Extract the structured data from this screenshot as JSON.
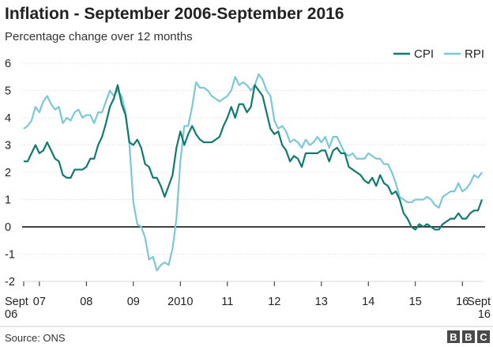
{
  "chart_data": {
    "type": "line",
    "title": "Inflation - September 2006-September 2016",
    "subtitle": "Percentage change over 12 months",
    "ylim": [
      -2,
      6
    ],
    "yticks": [
      -2,
      -1,
      0,
      1,
      2,
      3,
      4,
      5,
      6
    ],
    "grid": true,
    "legend_position": "top-right",
    "x_ticks": [
      {
        "x": 0,
        "label": "Sept",
        "label2": "06"
      },
      {
        "x": 4,
        "label": "07"
      },
      {
        "x": 16,
        "label": "08"
      },
      {
        "x": 28,
        "label": "09"
      },
      {
        "x": 40,
        "label": "2010"
      },
      {
        "x": 52,
        "label": "11"
      },
      {
        "x": 64,
        "label": "12"
      },
      {
        "x": 76,
        "label": "13"
      },
      {
        "x": 88,
        "label": "14"
      },
      {
        "x": 100,
        "label": "15"
      },
      {
        "x": 112,
        "label": "16"
      },
      {
        "x": 120,
        "label": "Sept",
        "label2": "16"
      }
    ],
    "series": [
      {
        "name": "CPI",
        "color": "#117a6e",
        "values": [
          2.4,
          2.4,
          2.7,
          3.0,
          2.7,
          2.8,
          3.1,
          2.8,
          2.5,
          2.4,
          1.9,
          1.8,
          1.8,
          2.1,
          2.1,
          2.1,
          2.2,
          2.5,
          2.5,
          3.0,
          3.3,
          3.8,
          4.4,
          4.7,
          5.2,
          4.5,
          4.1,
          3.1,
          3.0,
          3.2,
          2.9,
          2.3,
          2.2,
          1.8,
          1.8,
          1.5,
          1.1,
          1.5,
          1.9,
          2.9,
          3.5,
          3.0,
          3.4,
          3.7,
          3.4,
          3.2,
          3.1,
          3.1,
          3.1,
          3.2,
          3.3,
          3.7,
          4.0,
          4.4,
          4.0,
          4.5,
          4.5,
          4.2,
          4.4,
          5.2,
          5.0,
          4.8,
          4.2,
          3.6,
          3.4,
          3.5,
          3.0,
          2.8,
          2.4,
          2.6,
          2.5,
          2.2,
          2.7,
          2.7,
          2.7,
          2.7,
          2.8,
          2.8,
          2.4,
          2.8,
          2.9,
          2.7,
          2.7,
          2.2,
          2.1,
          2.0,
          1.9,
          1.7,
          1.6,
          1.8,
          1.5,
          1.9,
          1.6,
          1.5,
          1.2,
          1.3,
          1.0,
          0.5,
          0.3,
          0.0,
          -0.1,
          0.1,
          0.0,
          0.1,
          0.0,
          -0.1,
          -0.1,
          0.1,
          0.2,
          0.3,
          0.3,
          0.5,
          0.3,
          0.3,
          0.5,
          0.6,
          0.6,
          1.0
        ]
      },
      {
        "name": "RPI",
        "color": "#7bc8d6",
        "values": [
          3.6,
          3.7,
          3.9,
          4.4,
          4.2,
          4.6,
          4.8,
          4.5,
          4.3,
          4.4,
          3.8,
          4.0,
          3.9,
          4.2,
          4.3,
          4.0,
          4.1,
          4.1,
          3.8,
          4.2,
          4.2,
          4.6,
          5.0,
          4.8,
          5.0,
          4.8,
          4.2,
          3.0,
          0.9,
          0.1,
          0.0,
          -0.4,
          -1.2,
          -1.1,
          -1.6,
          -1.4,
          -1.3,
          -1.4,
          -0.8,
          0.3,
          2.4,
          3.7,
          3.7,
          4.4,
          5.3,
          5.1,
          5.1,
          5.0,
          4.8,
          4.7,
          4.6,
          4.7,
          4.8,
          5.0,
          5.5,
          5.2,
          5.3,
          5.2,
          5.0,
          5.2,
          5.6,
          5.4,
          5.0,
          4.8,
          3.9,
          3.6,
          3.7,
          3.5,
          3.1,
          3.2,
          3.1,
          2.9,
          3.2,
          3.0,
          3.1,
          3.3,
          3.1,
          3.3,
          2.9,
          3.3,
          3.3,
          3.0,
          2.7,
          2.6,
          2.7,
          2.5,
          2.5,
          2.5,
          2.7,
          2.6,
          2.5,
          2.5,
          2.3,
          2.3,
          2.0,
          1.6,
          1.1,
          1.0,
          0.9,
          0.9,
          1.0,
          1.0,
          1.0,
          1.1,
          1.0,
          0.8,
          0.7,
          1.1,
          1.2,
          1.3,
          1.3,
          1.6,
          1.3,
          1.4,
          1.6,
          1.9,
          1.8,
          2.0
        ]
      }
    ],
    "source": "Source: ONS",
    "logo": [
      "B",
      "B",
      "C"
    ]
  }
}
